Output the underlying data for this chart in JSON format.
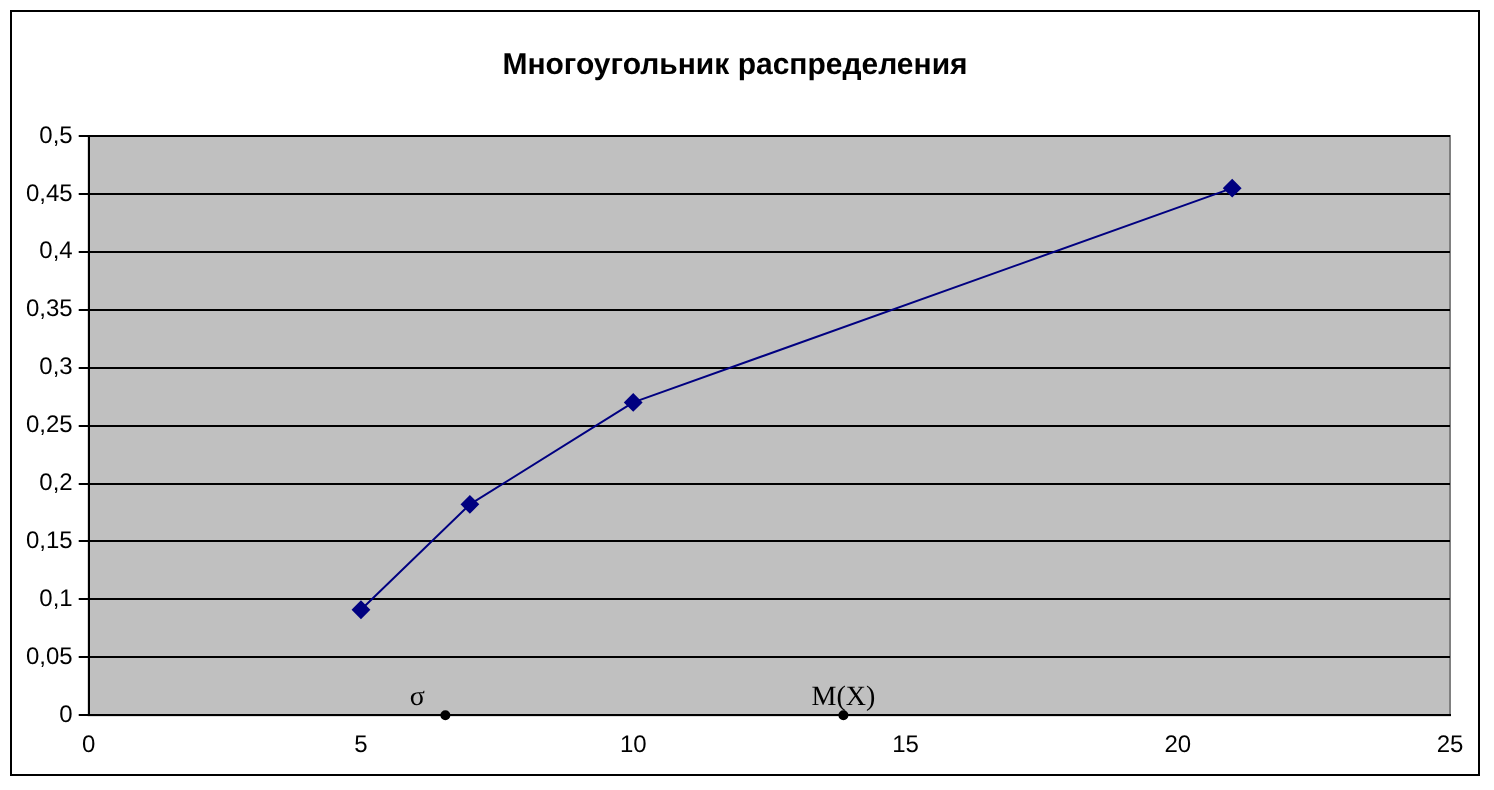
{
  "chart_data": {
    "type": "line",
    "title": "Многоугольник распределения",
    "x": [
      5,
      7,
      10,
      21
    ],
    "series": [
      {
        "color": "#000080",
        "values": [
          0.091,
          0.182,
          0.27,
          0.455
        ],
        "marker": "diamond"
      },
      {
        "type": "scatter",
        "color": "#000000",
        "x": [
          6.55,
          13.86
        ],
        "values": [
          0,
          0
        ],
        "marker": "circle"
      }
    ],
    "annotations": [
      {
        "text": "σ",
        "x": 6.55,
        "y": 0
      },
      {
        "text": "M(X)",
        "x": 13.86,
        "y": 0
      }
    ],
    "xlim": [
      0,
      25
    ],
    "xticks": [
      0,
      5,
      10,
      15,
      20,
      25
    ],
    "ylim": [
      0,
      0.5
    ],
    "yticks": [
      0,
      {
        "value": 0.05,
        "label": "0,05"
      },
      {
        "value": 0.1,
        "label": "0,1"
      },
      {
        "value": 0.15,
        "label": "0,15"
      },
      {
        "value": 0.2,
        "label": "0,2"
      },
      {
        "value": 0.25,
        "label": "0,25"
      },
      {
        "value": 0.3,
        "label": "0,3"
      },
      {
        "value": 0.35,
        "label": "0,35"
      },
      {
        "value": 0.4,
        "label": "0,4"
      },
      {
        "value": 0.45,
        "label": "0,45"
      },
      {
        "value": 0.5,
        "label": "0,5"
      }
    ],
    "grid": "y",
    "legend": false
  }
}
